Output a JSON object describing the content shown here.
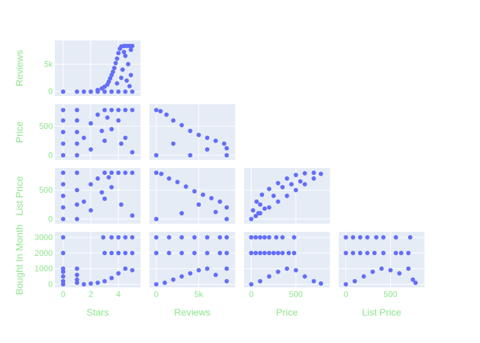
{
  "chart_data": {
    "type": "scatter",
    "subtype": "scatter-matrix-lower-triangle",
    "dimensions": [
      "Stars",
      "Reviews",
      "Price",
      "List Price",
      "Bought In Month"
    ],
    "style": {
      "marker_color": "#636efa",
      "panel_bg": "#e5ecf6",
      "grid_color": "#ffffff",
      "label_color": "#8be68b",
      "background": "#ffffff",
      "grid": true,
      "legend": "none"
    },
    "axes": {
      "Stars": {
        "range": [
          -0.6,
          5.6
        ],
        "ticks": [
          0,
          2,
          4
        ],
        "tick_labels": [
          "0",
          "2",
          "4"
        ]
      },
      "Reviews": {
        "range": [
          -800,
          9300
        ],
        "ticks": [
          0,
          5000
        ],
        "tick_labels": [
          "0",
          "5k"
        ]
      },
      "Price": {
        "range": [
          -80,
          880
        ],
        "ticks": [
          0,
          500
        ],
        "tick_labels": [
          "0",
          "500"
        ]
      },
      "List Price": {
        "range": [
          -80,
          880
        ],
        "ticks": [
          0,
          500
        ],
        "tick_labels": [
          "0",
          "500"
        ]
      },
      "Bought In Month": {
        "range": [
          -200,
          3350
        ],
        "ticks": [
          0,
          1000,
          2000,
          3000
        ],
        "tick_labels": [
          "0",
          "1000",
          "2000",
          "3000"
        ]
      }
    },
    "panels": [
      {
        "x": "Stars",
        "y": "Reviews",
        "points": [
          [
            0,
            0
          ],
          [
            1,
            0
          ],
          [
            1.5,
            0
          ],
          [
            2,
            0
          ],
          [
            2.5,
            0
          ],
          [
            3,
            0
          ],
          [
            3.5,
            0
          ],
          [
            4,
            0
          ],
          [
            4.5,
            0
          ],
          [
            5,
            0
          ],
          [
            2.5,
            300
          ],
          [
            2.8,
            600
          ],
          [
            3.0,
            900
          ],
          [
            3.2,
            1300
          ],
          [
            3.3,
            1800
          ],
          [
            3.4,
            2400
          ],
          [
            3.5,
            3000
          ],
          [
            3.6,
            3600
          ],
          [
            3.7,
            4300
          ],
          [
            3.8,
            5200
          ],
          [
            3.9,
            6000
          ],
          [
            4.0,
            7000
          ],
          [
            4.1,
            7800
          ],
          [
            4.2,
            8200
          ],
          [
            4.4,
            8300
          ],
          [
            4.6,
            8300
          ],
          [
            4.8,
            8300
          ],
          [
            5.0,
            8300
          ],
          [
            4.5,
            6500
          ],
          [
            4.7,
            5000
          ],
          [
            4.9,
            3000
          ],
          [
            4.3,
            4000
          ],
          [
            4.6,
            2000
          ],
          [
            4.8,
            1000
          ],
          [
            4.2,
            2500
          ],
          [
            3.9,
            1500
          ],
          [
            4.4,
            7200
          ],
          [
            4.9,
            7600
          ]
        ]
      },
      {
        "x": "Stars",
        "y": "Price",
        "points": [
          [
            0,
            0
          ],
          [
            0,
            200
          ],
          [
            0,
            400
          ],
          [
            0,
            600
          ],
          [
            0,
            780
          ],
          [
            1,
            0
          ],
          [
            1,
            200
          ],
          [
            1,
            400
          ],
          [
            1,
            600
          ],
          [
            1,
            780
          ],
          [
            1.5,
            300
          ],
          [
            2,
            550
          ],
          [
            2.5,
            700
          ],
          [
            3,
            780
          ],
          [
            3.5,
            780
          ],
          [
            4,
            780
          ],
          [
            4.5,
            780
          ],
          [
            5,
            780
          ],
          [
            2,
            100
          ],
          [
            3,
            250
          ],
          [
            3.5,
            450
          ],
          [
            4,
            600
          ],
          [
            4.5,
            300
          ],
          [
            5,
            50
          ],
          [
            3.2,
            650
          ],
          [
            2.8,
            420
          ],
          [
            4.2,
            200
          ]
        ]
      },
      {
        "x": "Reviews",
        "y": "Price",
        "points": [
          [
            0,
            0
          ],
          [
            0,
            780
          ],
          [
            500,
            760
          ],
          [
            1200,
            700
          ],
          [
            2000,
            600
          ],
          [
            3000,
            520
          ],
          [
            4000,
            420
          ],
          [
            5000,
            350
          ],
          [
            6000,
            300
          ],
          [
            7000,
            250
          ],
          [
            8000,
            200
          ],
          [
            8300,
            120
          ],
          [
            8300,
            0
          ],
          [
            4000,
            0
          ],
          [
            2000,
            200
          ],
          [
            6000,
            100
          ]
        ]
      },
      {
        "x": "Stars",
        "y": "List Price",
        "points": [
          [
            0,
            0
          ],
          [
            0,
            200
          ],
          [
            0,
            400
          ],
          [
            0,
            600
          ],
          [
            0,
            800
          ],
          [
            1,
            0
          ],
          [
            1,
            250
          ],
          [
            1,
            500
          ],
          [
            1,
            800
          ],
          [
            1.5,
            300
          ],
          [
            2,
            600
          ],
          [
            2.5,
            700
          ],
          [
            3,
            800
          ],
          [
            3.5,
            800
          ],
          [
            4,
            800
          ],
          [
            4.5,
            800
          ],
          [
            5,
            800
          ],
          [
            2,
            150
          ],
          [
            3,
            350
          ],
          [
            3.5,
            550
          ],
          [
            4.2,
            250
          ],
          [
            5,
            60
          ],
          [
            2.8,
            460
          ],
          [
            3.3,
            720
          ]
        ]
      },
      {
        "x": "Reviews",
        "y": "List Price",
        "points": [
          [
            0,
            0
          ],
          [
            0,
            800
          ],
          [
            600,
            780
          ],
          [
            1500,
            700
          ],
          [
            2500,
            640
          ],
          [
            3500,
            560
          ],
          [
            4500,
            480
          ],
          [
            5500,
            420
          ],
          [
            6500,
            360
          ],
          [
            7500,
            300
          ],
          [
            8300,
            200
          ],
          [
            8300,
            0
          ],
          [
            3000,
            100
          ],
          [
            5000,
            250
          ],
          [
            7000,
            120
          ]
        ]
      },
      {
        "x": "Price",
        "y": "List Price",
        "points": [
          [
            0,
            0
          ],
          [
            50,
            50
          ],
          [
            100,
            100
          ],
          [
            200,
            200
          ],
          [
            300,
            300
          ],
          [
            400,
            400
          ],
          [
            500,
            500
          ],
          [
            600,
            600
          ],
          [
            700,
            700
          ],
          [
            780,
            780
          ],
          [
            20,
            150
          ],
          [
            60,
            300
          ],
          [
            120,
            420
          ],
          [
            200,
            520
          ],
          [
            300,
            620
          ],
          [
            400,
            700
          ],
          [
            500,
            760
          ],
          [
            600,
            790
          ],
          [
            700,
            800
          ],
          [
            100,
            250
          ],
          [
            250,
            400
          ],
          [
            350,
            550
          ],
          [
            550,
            650
          ],
          [
            450,
            600
          ],
          [
            150,
            180
          ],
          [
            80,
            100
          ]
        ]
      },
      {
        "x": "Stars",
        "y": "Bought In Month",
        "points": [
          [
            0,
            0
          ],
          [
            0,
            200
          ],
          [
            0,
            500
          ],
          [
            0,
            800
          ],
          [
            0,
            1000
          ],
          [
            0,
            2000
          ],
          [
            0,
            3000
          ],
          [
            1,
            100
          ],
          [
            1,
            300
          ],
          [
            1,
            600
          ],
          [
            1,
            1000
          ],
          [
            1.5,
            0
          ],
          [
            2,
            50
          ],
          [
            2.5,
            100
          ],
          [
            3,
            200
          ],
          [
            3.5,
            400
          ],
          [
            4,
            700
          ],
          [
            4.5,
            1000
          ],
          [
            5,
            900
          ],
          [
            3,
            2000
          ],
          [
            3.5,
            2000
          ],
          [
            4,
            2000
          ],
          [
            4.5,
            2000
          ],
          [
            5,
            2000
          ],
          [
            2.9,
            3000
          ],
          [
            3.5,
            3000
          ],
          [
            4,
            3000
          ],
          [
            4.5,
            3000
          ],
          [
            5,
            3000
          ]
        ]
      },
      {
        "x": "Reviews",
        "y": "Bought In Month",
        "points": [
          [
            0,
            0
          ],
          [
            1000,
            100
          ],
          [
            2000,
            300
          ],
          [
            3000,
            500
          ],
          [
            4000,
            700
          ],
          [
            5000,
            900
          ],
          [
            6000,
            1000
          ],
          [
            7000,
            600
          ],
          [
            8300,
            200
          ],
          [
            8300,
            1000
          ],
          [
            0,
            2000
          ],
          [
            1500,
            2000
          ],
          [
            3000,
            2000
          ],
          [
            4500,
            2000
          ],
          [
            6000,
            2000
          ],
          [
            7500,
            2000
          ],
          [
            8300,
            2000
          ],
          [
            0,
            3000
          ],
          [
            1500,
            3000
          ],
          [
            3000,
            3000
          ],
          [
            4500,
            3000
          ],
          [
            6000,
            3000
          ],
          [
            7500,
            3000
          ],
          [
            8300,
            3000
          ]
        ]
      },
      {
        "x": "Price",
        "y": "Bought In Month",
        "points": [
          [
            0,
            0
          ],
          [
            100,
            200
          ],
          [
            200,
            500
          ],
          [
            300,
            800
          ],
          [
            400,
            1000
          ],
          [
            500,
            900
          ],
          [
            600,
            500
          ],
          [
            700,
            200
          ],
          [
            780,
            50
          ],
          [
            0,
            2000
          ],
          [
            50,
            2000
          ],
          [
            100,
            2000
          ],
          [
            150,
            2000
          ],
          [
            200,
            2000
          ],
          [
            250,
            2000
          ],
          [
            300,
            2000
          ],
          [
            350,
            2000
          ],
          [
            420,
            2000
          ],
          [
            480,
            2000
          ],
          [
            0,
            3000
          ],
          [
            50,
            3000
          ],
          [
            100,
            3000
          ],
          [
            150,
            3000
          ],
          [
            200,
            3000
          ],
          [
            280,
            3000
          ],
          [
            350,
            3000
          ],
          [
            480,
            3000
          ]
        ]
      },
      {
        "x": "List Price",
        "y": "Bought In Month",
        "points": [
          [
            0,
            0
          ],
          [
            100,
            200
          ],
          [
            200,
            500
          ],
          [
            300,
            800
          ],
          [
            400,
            1000
          ],
          [
            500,
            900
          ],
          [
            600,
            700
          ],
          [
            700,
            1000
          ],
          [
            780,
            100
          ],
          [
            750,
            300
          ],
          [
            0,
            2000
          ],
          [
            80,
            2000
          ],
          [
            160,
            2000
          ],
          [
            240,
            2000
          ],
          [
            320,
            2000
          ],
          [
            420,
            2000
          ],
          [
            560,
            2000
          ],
          [
            620,
            2000
          ],
          [
            700,
            2000
          ],
          [
            0,
            3000
          ],
          [
            80,
            3000
          ],
          [
            160,
            3000
          ],
          [
            240,
            3000
          ],
          [
            340,
            3000
          ],
          [
            420,
            3000
          ],
          [
            560,
            3000
          ],
          [
            720,
            3000
          ]
        ]
      }
    ]
  }
}
